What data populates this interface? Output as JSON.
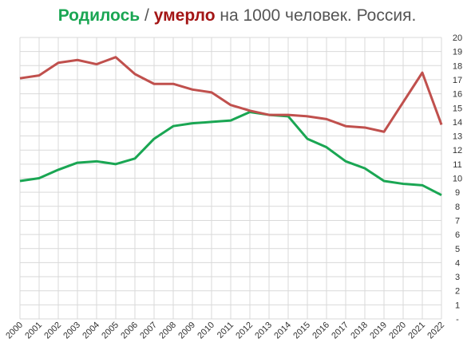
{
  "chart_data": {
    "type": "line",
    "title_separator": "/",
    "title": "на 1000 человек. Россия.",
    "categories": [
      "2000",
      "2001",
      "2002",
      "2003",
      "2004",
      "2005",
      "2006",
      "2007",
      "2008",
      "2009",
      "2010",
      "2011",
      "2012",
      "2013",
      "2014",
      "2015",
      "2016",
      "2017",
      "2018",
      "2019",
      "2020",
      "2021",
      "2022"
    ],
    "series": [
      {
        "name": "Родилось",
        "color": "#1aa653",
        "values": [
          9.8,
          10.0,
          10.6,
          11.1,
          11.2,
          11.0,
          11.4,
          12.8,
          13.7,
          13.9,
          14.0,
          14.1,
          14.7,
          14.5,
          14.4,
          12.8,
          12.2,
          11.2,
          10.7,
          9.8,
          9.6,
          9.5,
          8.8
        ]
      },
      {
        "name": "умерло",
        "color": "#c0504d",
        "values": [
          17.1,
          17.3,
          18.2,
          18.4,
          18.1,
          18.6,
          17.4,
          16.7,
          16.7,
          16.3,
          16.1,
          15.2,
          14.8,
          14.5,
          14.5,
          14.4,
          14.2,
          13.7,
          13.6,
          13.3,
          15.4,
          17.5,
          13.8
        ]
      }
    ],
    "ylim": [
      0,
      20
    ],
    "yticks": [
      {
        "value": 0,
        "label": "-"
      },
      1,
      2,
      3,
      4,
      5,
      6,
      7,
      8,
      9,
      10,
      11,
      12,
      13,
      14,
      15,
      16,
      17,
      18,
      19,
      20
    ],
    "grid": true
  }
}
